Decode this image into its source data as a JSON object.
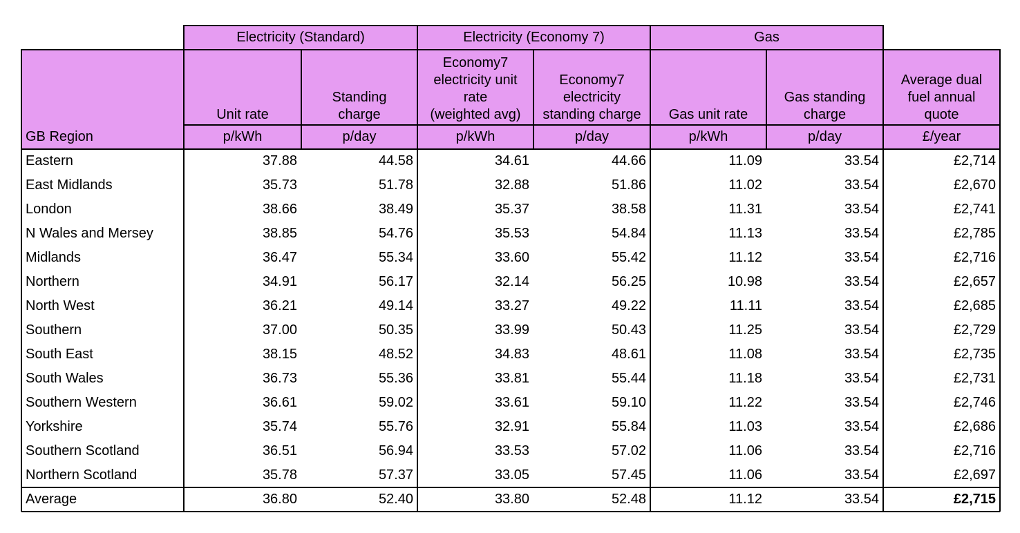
{
  "groups": {
    "elec_standard": "Electricity (Standard)",
    "elec_economy7": "Electricity (Economy 7)",
    "gas": "Gas"
  },
  "columns": [
    {
      "id": "region",
      "header": [
        ""
      ],
      "unit": "GB Region"
    },
    {
      "id": "unit_rate",
      "header": [
        "Unit rate"
      ],
      "unit": "p/kWh"
    },
    {
      "id": "standing_charge",
      "header": [
        "Standing",
        "charge"
      ],
      "unit": "p/day"
    },
    {
      "id": "e7_unit_rate",
      "header": [
        "Economy7",
        "electricity unit",
        "rate",
        "(weighted avg)"
      ],
      "unit": "p/kWh"
    },
    {
      "id": "e7_standing",
      "header": [
        "Economy7",
        "electricity",
        "standing charge"
      ],
      "unit": "p/day"
    },
    {
      "id": "gas_unit_rate",
      "header": [
        "Gas unit rate"
      ],
      "unit": "p/kWh"
    },
    {
      "id": "gas_standing",
      "header": [
        "Gas standing",
        "charge"
      ],
      "unit": "p/day"
    },
    {
      "id": "annual_quote",
      "header": [
        "Average dual",
        "fuel annual",
        "quote"
      ],
      "unit": "£/year"
    }
  ],
  "rows": [
    [
      "Eastern",
      "37.88",
      "44.58",
      "34.61",
      "44.66",
      "11.09",
      "33.54",
      "£2,714"
    ],
    [
      "East Midlands",
      "35.73",
      "51.78",
      "32.88",
      "51.86",
      "11.02",
      "33.54",
      "£2,670"
    ],
    [
      "London",
      "38.66",
      "38.49",
      "35.37",
      "38.58",
      "11.31",
      "33.54",
      "£2,741"
    ],
    [
      "N Wales and Mersey",
      "38.85",
      "54.76",
      "35.53",
      "54.84",
      "11.13",
      "33.54",
      "£2,785"
    ],
    [
      "Midlands",
      "36.47",
      "55.34",
      "33.60",
      "55.42",
      "11.12",
      "33.54",
      "£2,716"
    ],
    [
      "Northern",
      "34.91",
      "56.17",
      "32.14",
      "56.25",
      "10.98",
      "33.54",
      "£2,657"
    ],
    [
      "North West",
      "36.21",
      "49.14",
      "33.27",
      "49.22",
      "11.11",
      "33.54",
      "£2,685"
    ],
    [
      "Southern",
      "37.00",
      "50.35",
      "33.99",
      "50.43",
      "11.25",
      "33.54",
      "£2,729"
    ],
    [
      "South East",
      "38.15",
      "48.52",
      "34.83",
      "48.61",
      "11.08",
      "33.54",
      "£2,735"
    ],
    [
      "South Wales",
      "36.73",
      "55.36",
      "33.81",
      "55.44",
      "11.18",
      "33.54",
      "£2,731"
    ],
    [
      "Southern Western",
      "36.61",
      "59.02",
      "33.61",
      "59.10",
      "11.22",
      "33.54",
      "£2,746"
    ],
    [
      "Yorkshire",
      "35.74",
      "55.76",
      "32.91",
      "55.84",
      "11.03",
      "33.54",
      "£2,686"
    ],
    [
      "Southern Scotland",
      "36.51",
      "56.94",
      "33.53",
      "57.02",
      "11.06",
      "33.54",
      "£2,716"
    ],
    [
      "Northern Scotland",
      "35.78",
      "57.37",
      "33.05",
      "57.45",
      "11.06",
      "33.54",
      "£2,697"
    ]
  ],
  "average": [
    "Average",
    "36.80",
    "52.40",
    "33.80",
    "52.48",
    "11.12",
    "33.54",
    "£2,715"
  ],
  "colors": {
    "header_fill": "#e69cf2",
    "border": "#000000"
  }
}
